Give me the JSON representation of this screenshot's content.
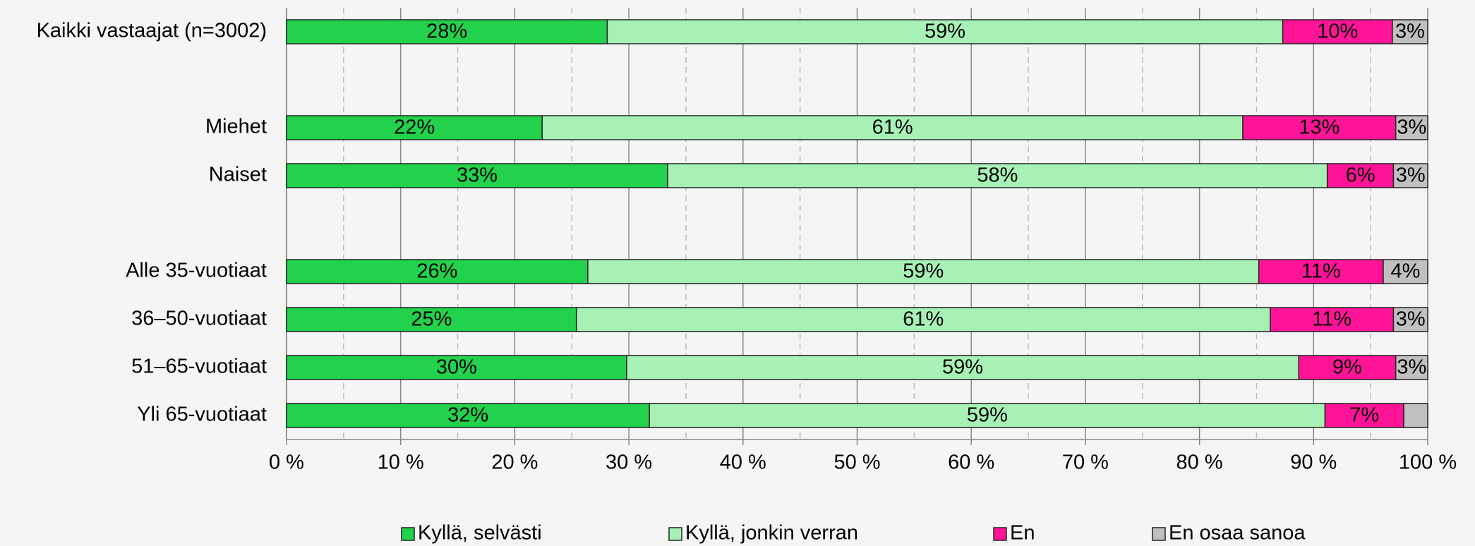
{
  "chart_data": {
    "type": "stacked_barh",
    "categories": [
      "Kaikki vastaajat (n=3002)",
      null,
      "Miehet",
      "Naiset",
      null,
      "Alle 35-vuotiaat",
      "36–50-vuotiaat",
      "51–65-vuotiaat",
      "Yli 65-vuotiaat"
    ],
    "series": [
      {
        "name": "Kyllä, selvästi",
        "color": "#22d24c",
        "values": [
          28.1,
          null,
          22.4,
          33.4,
          null,
          26.4,
          25.4,
          29.8,
          31.8
        ],
        "value_labels": [
          "28%",
          null,
          "22%",
          "33%",
          null,
          "26%",
          "25%",
          "30%",
          "32%"
        ]
      },
      {
        "name": "Kyllä, jonkin verran",
        "color": "#a8f1b6",
        "values": [
          59.2,
          null,
          61.4,
          57.8,
          null,
          58.8,
          60.8,
          58.9,
          59.2
        ],
        "value_labels": [
          "59%",
          null,
          "61%",
          "58%",
          null,
          "59%",
          "61%",
          "59%",
          "59%"
        ]
      },
      {
        "name": "En",
        "color": "#ff1497",
        "values": [
          9.6,
          null,
          13.4,
          5.8,
          null,
          10.9,
          10.8,
          8.5,
          6.9
        ],
        "value_labels": [
          "10%",
          null,
          "13%",
          "6%",
          null,
          "11%",
          "11%",
          "9%",
          "7%"
        ]
      },
      {
        "name": "En osaa sanoa",
        "color": "#c0c0c0",
        "values": [
          3.1,
          null,
          2.8,
          3.0,
          null,
          3.9,
          3.0,
          2.8,
          2.1
        ],
        "value_labels": [
          "3%",
          null,
          "3%",
          "3%",
          null,
          "4%",
          "3%",
          "3%",
          null
        ]
      }
    ],
    "xlim": [
      0,
      100
    ],
    "xticks": [
      {
        "value": 0,
        "label": "0 %"
      },
      {
        "value": 10,
        "label": "10 %"
      },
      {
        "value": 20,
        "label": "20 %"
      },
      {
        "value": 30,
        "label": "30 %"
      },
      {
        "value": 40,
        "label": "40 %"
      },
      {
        "value": 50,
        "label": "50 %"
      },
      {
        "value": 60,
        "label": "60 %"
      },
      {
        "value": 70,
        "label": "70 %"
      },
      {
        "value": 80,
        "label": "80 %"
      },
      {
        "value": 90,
        "label": "90 %"
      },
      {
        "value": 100,
        "label": "100 %"
      }
    ],
    "minor_xticks": [
      5,
      15,
      25,
      35,
      45,
      55,
      65,
      75,
      85,
      95
    ],
    "grid": true,
    "legend": "bottom"
  }
}
